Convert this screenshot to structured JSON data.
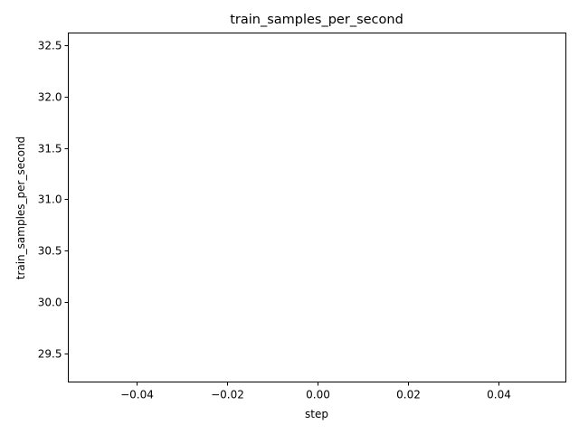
{
  "chart_data": {
    "type": "line",
    "title": "train_samples_per_second",
    "xlabel": "step",
    "ylabel": "train_samples_per_second",
    "xlim": [
      -0.055,
      0.055
    ],
    "ylim": [
      29.22,
      32.62
    ],
    "xticks": [
      -0.04,
      -0.02,
      0.0,
      0.02,
      0.04
    ],
    "xtick_labels": [
      "−0.04",
      "−0.02",
      "0.00",
      "0.02",
      "0.04"
    ],
    "yticks": [
      29.5,
      30.0,
      30.5,
      31.0,
      31.5,
      32.0,
      32.5
    ],
    "ytick_labels": [
      "29.5",
      "30.0",
      "30.5",
      "31.0",
      "31.5",
      "32.0",
      "32.5"
    ],
    "grid": false,
    "series": [
      {
        "x": [],
        "y": [],
        "color": "#1f77b4"
      }
    ]
  }
}
